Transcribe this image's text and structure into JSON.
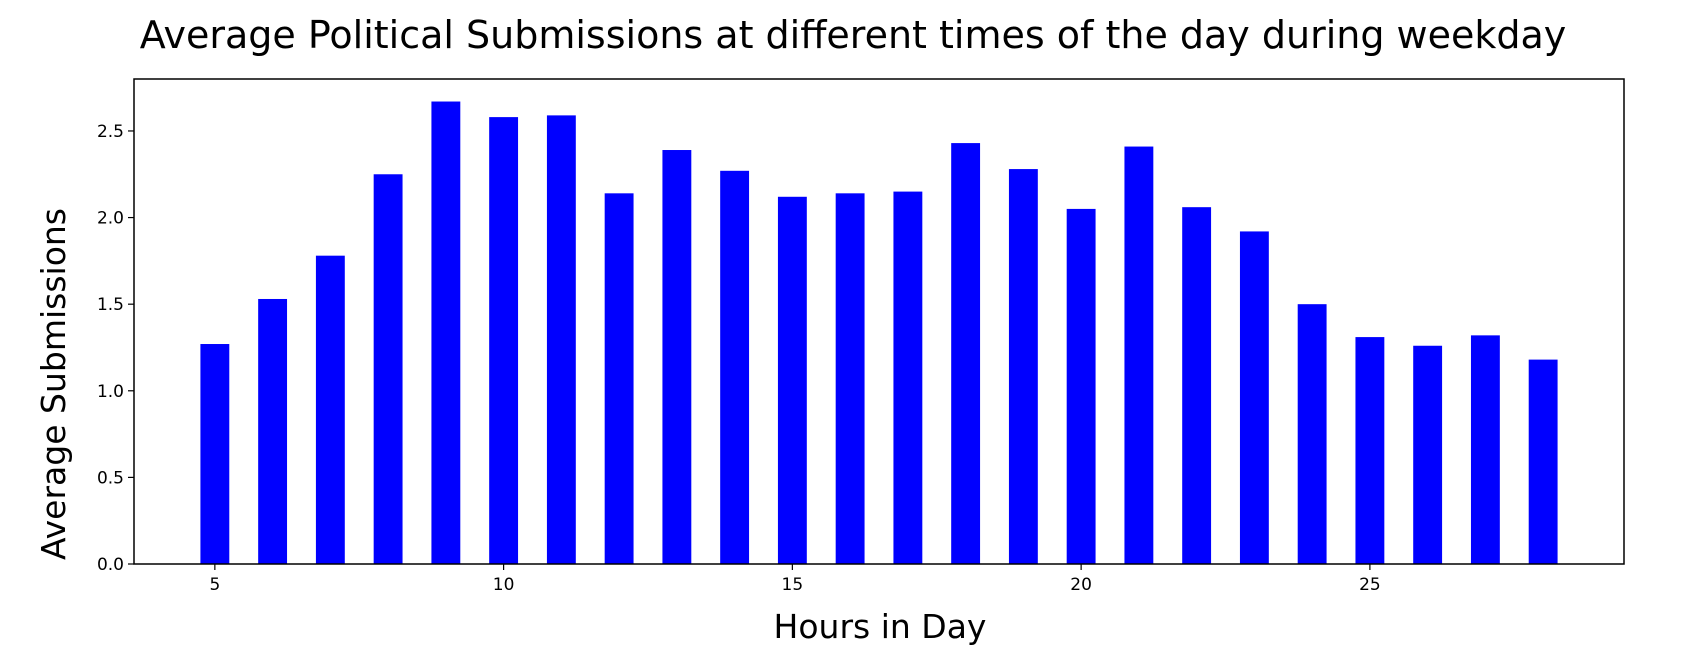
{
  "chart_data": {
    "type": "bar",
    "title": "Average Political Submissions at different times of the day during weekday",
    "xlabel": "Hours in Day",
    "ylabel": "Average Submissions",
    "x": [
      5,
      6,
      7,
      8,
      9,
      10,
      11,
      12,
      13,
      14,
      15,
      16,
      17,
      18,
      19,
      20,
      21,
      22,
      23,
      24,
      25,
      26,
      27,
      28
    ],
    "values": [
      1.27,
      1.53,
      1.78,
      2.25,
      2.67,
      2.58,
      2.59,
      2.14,
      2.39,
      2.27,
      2.12,
      2.14,
      2.15,
      2.43,
      2.28,
      2.05,
      2.41,
      2.06,
      1.92,
      1.5,
      1.31,
      1.26,
      1.32,
      1.18
    ],
    "xlim": [
      3.6,
      29.4
    ],
    "ylim": [
      0,
      2.8
    ],
    "xticks": [
      "5",
      "10",
      "15",
      "20",
      "25"
    ],
    "yticks": [
      "0.0",
      "0.5",
      "1.0",
      "1.5",
      "2.0",
      "2.5"
    ],
    "bar_color": "#0000ff",
    "grid": false,
    "legend": "none"
  }
}
